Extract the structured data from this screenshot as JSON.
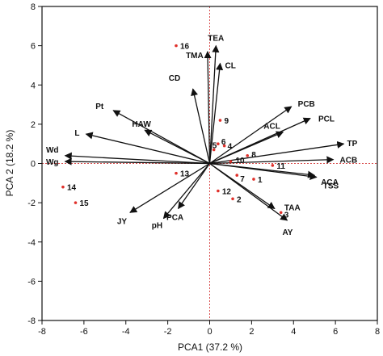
{
  "chart_data": {
    "type": "scatter",
    "subtype": "pca-biplot",
    "xlabel": "PCA1 (37.2 %)",
    "ylabel": "PCA 2  (18.2 %)",
    "xlim": [
      -8,
      8
    ],
    "ylim": [
      -8,
      8
    ],
    "xticks": [
      -8,
      -6,
      -4,
      -2,
      0,
      2,
      4,
      6,
      8
    ],
    "yticks": [
      -8,
      -6,
      -4,
      -2,
      0,
      2,
      4,
      6,
      8
    ],
    "reference_lines": {
      "x": 0,
      "y": 0,
      "style": "dotted",
      "color": "#d94c4c"
    },
    "loadings": [
      {
        "label": "TEA",
        "x": 0.3,
        "y": 6.0
      },
      {
        "label": "TMA",
        "x": -0.1,
        "y": 5.7
      },
      {
        "label": "CL",
        "x": 0.5,
        "y": 5.1
      },
      {
        "label": "CD",
        "x": -0.8,
        "y": 3.8
      },
      {
        "label": "PCB",
        "x": 3.9,
        "y": 2.9
      },
      {
        "label": "PCL",
        "x": 4.8,
        "y": 2.3
      },
      {
        "label": "ACL",
        "x": 3.5,
        "y": 1.6
      },
      {
        "label": "TP",
        "x": 6.4,
        "y": 1.0
      },
      {
        "label": "ACB",
        "x": 5.9,
        "y": 0.2
      },
      {
        "label": "ACA",
        "x": 5.0,
        "y": -0.6
      },
      {
        "label": "TSS",
        "x": 5.1,
        "y": -0.7
      },
      {
        "label": "TAA",
        "x": 3.1,
        "y": -2.3
      },
      {
        "label": "AY",
        "x": 3.7,
        "y": -2.9
      },
      {
        "label": "PCA",
        "x": -1.5,
        "y": -2.3
      },
      {
        "label": "pH",
        "x": -2.2,
        "y": -2.8
      },
      {
        "label": "JY",
        "x": -3.8,
        "y": -2.5
      },
      {
        "label": "HAW",
        "x": -3.1,
        "y": 1.7
      },
      {
        "label": "Pt",
        "x": -4.6,
        "y": 2.7
      },
      {
        "label": "L",
        "x": -5.9,
        "y": 1.5
      },
      {
        "label": "Wd",
        "x": -6.9,
        "y": 0.4
      },
      {
        "label": "Wg",
        "x": -6.9,
        "y": 0.1
      }
    ],
    "observations": [
      {
        "label": "1",
        "x": 2.1,
        "y": -0.8
      },
      {
        "label": "2",
        "x": 1.1,
        "y": -1.8
      },
      {
        "label": "3",
        "x": 3.4,
        "y": -2.5
      },
      {
        "label": "4",
        "x": 0.7,
        "y": 0.9
      },
      {
        "label": "5",
        "x": 0.2,
        "y": 0.7
      },
      {
        "label": "6",
        "x": 0.4,
        "y": 1.0
      },
      {
        "label": "7",
        "x": 1.3,
        "y": -0.6
      },
      {
        "label": "8",
        "x": 1.8,
        "y": 0.4
      },
      {
        "label": "9",
        "x": 0.5,
        "y": 2.2
      },
      {
        "label": "10",
        "x": 1.0,
        "y": 0.1
      },
      {
        "label": "11",
        "x": 3.0,
        "y": -0.1
      },
      {
        "label": "12",
        "x": 0.4,
        "y": -1.4
      },
      {
        "label": "13",
        "x": -1.6,
        "y": -0.5
      },
      {
        "label": "14",
        "x": -7.0,
        "y": -1.2
      },
      {
        "label": "15",
        "x": -6.4,
        "y": -2.0
      },
      {
        "label": "16",
        "x": -1.6,
        "y": 6.0
      }
    ],
    "grid": false,
    "colors": {
      "arrow": "#111111",
      "point": "#e0302a",
      "refline": "#d94c4c",
      "frame": "#111111"
    }
  }
}
